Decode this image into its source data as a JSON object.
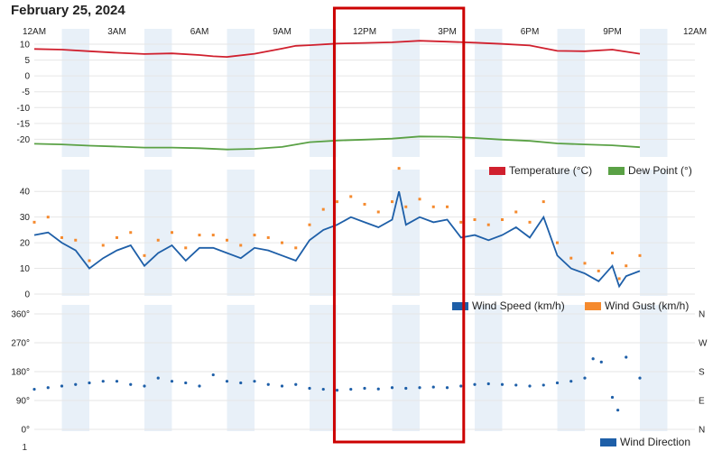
{
  "page_title": "February 25, 2024",
  "time_axis": {
    "tick_labels": [
      "12AM",
      "3AM",
      "6AM",
      "9AM",
      "12PM",
      "3PM",
      "6PM",
      "9PM",
      "12AM"
    ],
    "range_hours": [
      0,
      24
    ],
    "shaded_bands": true
  },
  "highlight_box": {
    "from_hour": 10.9,
    "to_hour": 15.6,
    "color": "#cc0000"
  },
  "colors": {
    "temperature": "#d0202e",
    "dew_point": "#5aa145",
    "wind_speed": "#1e5fa8",
    "wind_gust": "#f58a2e",
    "wind_direction": "#1e5fa8",
    "band": "#e8f0f8",
    "grid": "#e6e6e6"
  },
  "chart_data": [
    {
      "type": "line",
      "panel": "temperature",
      "x_unit": "hour of day",
      "ylim": [
        -25,
        12
      ],
      "yticks": [
        10,
        5,
        0,
        -5,
        -10,
        -15,
        -20
      ],
      "grid": true,
      "legend_position": "bottom-right",
      "series": [
        {
          "name": "Temperature (°C)",
          "color": "#d0202e",
          "x": [
            0,
            1,
            2,
            3,
            4,
            5,
            6,
            6.5,
            7,
            8,
            9,
            9.5,
            10,
            11,
            12,
            13,
            14,
            15,
            16,
            17,
            18,
            19,
            20,
            21,
            22
          ],
          "y": [
            8.5,
            8.3,
            7.8,
            7.3,
            6.9,
            7.1,
            6.6,
            6.2,
            6.0,
            7.0,
            8.6,
            9.5,
            9.7,
            10.2,
            10.4,
            10.6,
            11.1,
            10.8,
            10.5,
            10.1,
            9.6,
            7.9,
            7.8,
            8.3,
            7.0
          ]
        },
        {
          "name": "Dew Point (°)",
          "color": "#5aa145",
          "x": [
            0,
            1,
            2,
            3,
            4,
            5,
            6,
            7,
            8,
            9,
            10,
            11,
            12,
            13,
            14,
            15,
            16,
            17,
            18,
            19,
            20,
            21,
            22
          ],
          "y": [
            -21.4,
            -21.6,
            -22.0,
            -22.3,
            -22.6,
            -22.6,
            -22.8,
            -23.2,
            -23.0,
            -22.4,
            -20.9,
            -20.4,
            -20.1,
            -19.8,
            -19.1,
            -19.2,
            -19.6,
            -20.1,
            -20.5,
            -21.3,
            -21.6,
            -21.9,
            -22.5
          ]
        }
      ]
    },
    {
      "type": "line",
      "panel": "wind",
      "x_unit": "hour of day",
      "ylim": [
        0,
        45
      ],
      "yticks": [
        40,
        30,
        20,
        10,
        0
      ],
      "grid": true,
      "legend_position": "bottom-right",
      "series": [
        {
          "name": "Wind Speed (km/h)",
          "color": "#1e5fa8",
          "style": "line",
          "x": [
            0,
            0.5,
            1,
            1.5,
            2,
            2.5,
            3,
            3.5,
            4,
            4.5,
            5,
            5.5,
            6,
            6.5,
            7,
            7.5,
            8,
            8.5,
            9,
            9.5,
            10,
            10.5,
            11,
            11.5,
            12,
            12.5,
            13,
            13.25,
            13.5,
            14,
            14.5,
            15,
            15.5,
            16,
            16.5,
            17,
            17.5,
            18,
            18.5,
            19,
            19.5,
            20,
            20.5,
            21,
            21.25,
            21.5,
            22
          ],
          "y": [
            23,
            24,
            20,
            17,
            10,
            14,
            17,
            19,
            11,
            16,
            19,
            13,
            18,
            18,
            16,
            14,
            18,
            17,
            15,
            13,
            21,
            25,
            27,
            30,
            28,
            26,
            29,
            40,
            27,
            30,
            28,
            29,
            22,
            23,
            21,
            23,
            26,
            22,
            30,
            15,
            10,
            8,
            5,
            11,
            3,
            7,
            9
          ]
        },
        {
          "name": "Wind Gust (km/h)",
          "color": "#f58a2e",
          "style": "dots",
          "x": [
            0,
            0.5,
            1,
            1.5,
            2,
            2.5,
            3,
            3.5,
            4,
            4.5,
            5,
            5.5,
            6,
            6.5,
            7,
            7.5,
            8,
            8.5,
            9,
            9.5,
            10,
            10.5,
            11,
            11.5,
            12,
            12.5,
            13,
            13.25,
            13.5,
            14,
            14.5,
            15,
            15.5,
            16,
            16.5,
            17,
            17.5,
            18,
            18.5,
            19,
            19.5,
            20,
            20.5,
            21,
            21.25,
            21.5,
            22
          ],
          "y": [
            28,
            30,
            22,
            21,
            13,
            19,
            22,
            24,
            15,
            21,
            24,
            18,
            23,
            23,
            21,
            19,
            23,
            22,
            20,
            18,
            27,
            33,
            36,
            38,
            35,
            32,
            36,
            49,
            34,
            37,
            34,
            34,
            28,
            29,
            27,
            29,
            32,
            28,
            36,
            20,
            14,
            12,
            9,
            16,
            6,
            11,
            15
          ]
        }
      ]
    },
    {
      "type": "scatter",
      "panel": "wind_direction",
      "x_unit": "hour of day",
      "ylim": [
        0,
        360
      ],
      "yticks": [
        "360°",
        "270°",
        "180°",
        "90°",
        "0°"
      ],
      "right_ticks": [
        "N",
        "W",
        "S",
        "E",
        "N"
      ],
      "grid": true,
      "legend_position": "bottom-right",
      "series": [
        {
          "name": "Wind Direction",
          "color": "#1e5fa8",
          "x": [
            0,
            0.5,
            1,
            1.5,
            2,
            2.5,
            3,
            3.5,
            4,
            4.5,
            5,
            5.5,
            6,
            6.5,
            7,
            7.5,
            8,
            8.5,
            9,
            9.5,
            10,
            10.5,
            11,
            11.5,
            12,
            12.5,
            13,
            13.5,
            14,
            14.5,
            15,
            15.5,
            16,
            16.5,
            17,
            17.5,
            18,
            18.5,
            19,
            19.5,
            20,
            20.3,
            20.6,
            21,
            21.2,
            21.5,
            22
          ],
          "y": [
            125,
            130,
            135,
            140,
            145,
            150,
            150,
            140,
            135,
            160,
            150,
            145,
            135,
            170,
            150,
            145,
            150,
            140,
            135,
            140,
            128,
            125,
            122,
            125,
            128,
            126,
            130,
            128,
            130,
            132,
            130,
            135,
            140,
            142,
            140,
            138,
            135,
            138,
            145,
            150,
            160,
            220,
            210,
            100,
            60,
            225,
            160
          ]
        }
      ]
    }
  ],
  "legends": {
    "temperature": "Temperature (°C)",
    "dew_point": "Dew Point (°)",
    "wind_speed": "Wind Speed (km/h)",
    "wind_gust": "Wind Gust (km/h)",
    "wind_direction": "Wind Direction"
  },
  "extra_axis_label": "1"
}
